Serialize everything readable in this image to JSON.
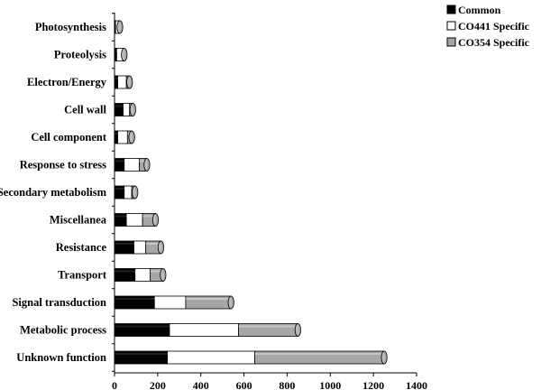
{
  "chart_data": {
    "type": "bar",
    "orientation": "horizontal",
    "stacked": true,
    "style": "3d-cylinder",
    "title": "",
    "xlabel": "",
    "ylabel": "",
    "xlim": [
      0,
      1400
    ],
    "xticks": [
      0,
      200,
      400,
      600,
      800,
      1000,
      1200,
      1400
    ],
    "legend_position": "top-right",
    "categories": [
      "Photosynthesis",
      "Proteolysis",
      "Electron/Energy",
      "Cell wall",
      "Cell component",
      "Response to stress",
      "Secondary metabolism",
      "Miscellanea",
      "Resistance",
      "Transport",
      "Signal transduction",
      "Metabolic process",
      "Unknown function"
    ],
    "series": [
      {
        "name": "Common",
        "color": "#000000",
        "values": [
          5,
          10,
          15,
          40,
          15,
          45,
          45,
          55,
          90,
          95,
          185,
          255,
          245
        ]
      },
      {
        "name": "CO441 Specific",
        "color": "#ffffff",
        "values": [
          15,
          30,
          40,
          30,
          45,
          70,
          35,
          75,
          55,
          70,
          145,
          320,
          405
        ]
      },
      {
        "name": "CO354 Specific",
        "color": "#a6a6a6",
        "values": [
          5,
          5,
          15,
          15,
          20,
          35,
          15,
          60,
          70,
          60,
          210,
          275,
          600
        ]
      }
    ]
  }
}
